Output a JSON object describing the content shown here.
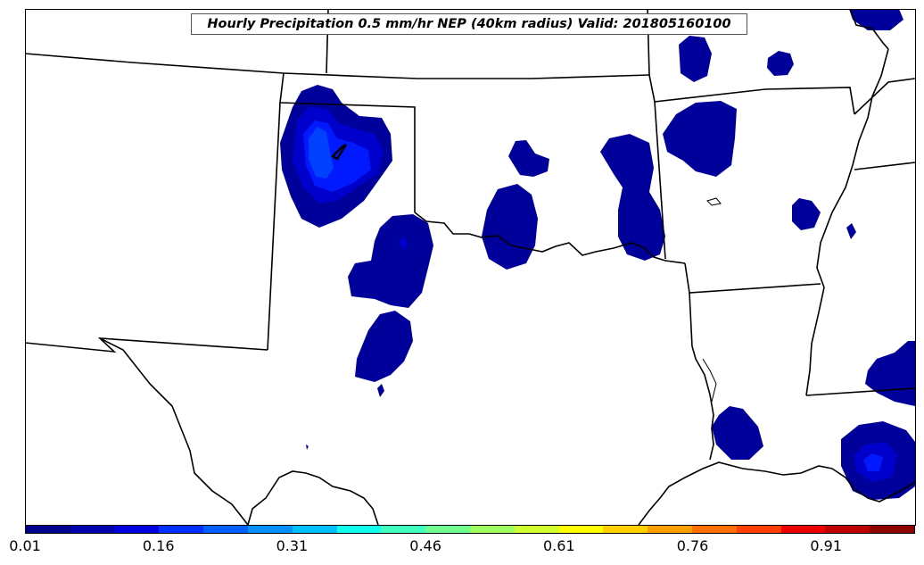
{
  "map": {
    "title": "Hourly Precipitation 0.5 mm/hr NEP (40km radius) Valid: 201805160100"
  },
  "legend": {
    "colors": [
      "#00008f",
      "#0000af",
      "#0000df",
      "#0030ff",
      "#0060ff",
      "#0090ff",
      "#00c0ff",
      "#10ffef",
      "#40ffbf",
      "#70ff8f",
      "#9fff60",
      "#cfff30",
      "#ffff00",
      "#ffcf00",
      "#ff9f00",
      "#ff6f00",
      "#ff3f00",
      "#ef0000",
      "#bf0000",
      "#8f0000"
    ],
    "tick_labels": [
      "0.01",
      "0.16",
      "0.31",
      "0.46",
      "0.61",
      "0.76",
      "0.91"
    ]
  },
  "precipitation_shading": {
    "level_1_color": "#00009a",
    "level_2_color": "#0000cc",
    "level_3_color": "#0019ff",
    "level_4_color": "#0041ff"
  }
}
